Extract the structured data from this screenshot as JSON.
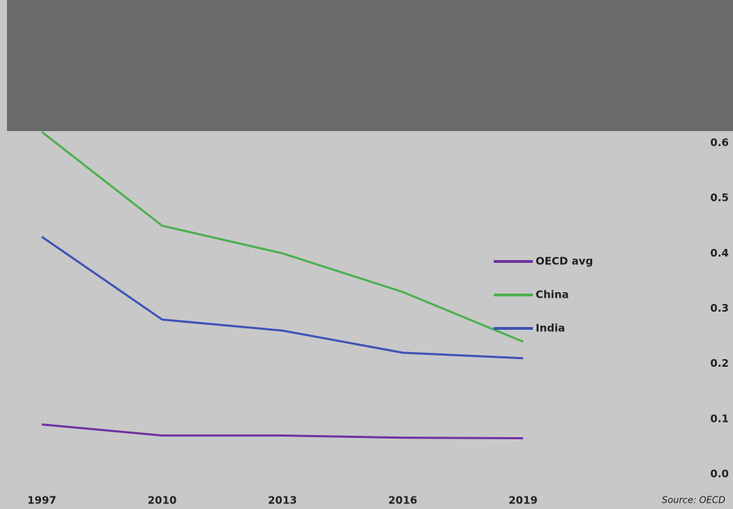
{
  "chart_data": {
    "type": "line",
    "categories": [
      "1997",
      "2010",
      "2013",
      "2016",
      "2019"
    ],
    "series": [
      {
        "name": "OECD avg",
        "color": "#7030a0",
        "values": [
          0.09,
          0.07,
          0.07,
          0.066,
          0.065
        ]
      },
      {
        "name": "China",
        "color": "#4caf50",
        "values": [
          0.62,
          0.45,
          0.4,
          0.33,
          0.24
        ]
      },
      {
        "name": "India",
        "color": "#3f51b5",
        "values": [
          0.43,
          0.28,
          0.26,
          0.22,
          0.21
        ]
      }
    ],
    "ylim": [
      0,
      0.6
    ],
    "yticks": [
      {
        "value": 0,
        "label": "0.0"
      },
      0.1,
      0.2,
      0.3,
      0.4,
      0.5,
      0.6
    ],
    "grid": true,
    "legend": "right",
    "source": "Source: OECD"
  }
}
